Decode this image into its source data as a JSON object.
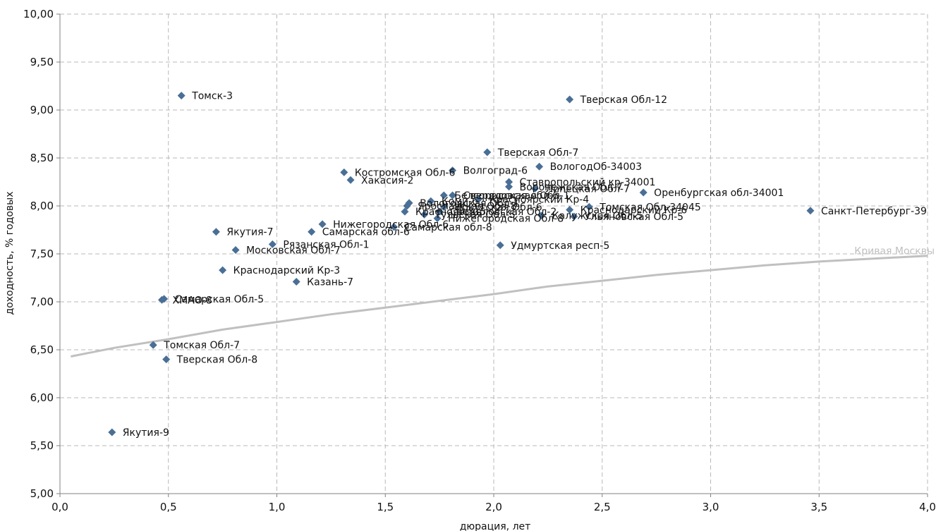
{
  "chart_data": {
    "type": "scatter",
    "xlabel": "дюрация, лет",
    "ylabel": "доходность, % годовых",
    "xlim": [
      0,
      4
    ],
    "ylim": [
      5,
      10
    ],
    "grid": true,
    "x_ticks": [
      "0,0",
      "0,5",
      "1,0",
      "1,5",
      "2,0",
      "2,5",
      "3,0",
      "3,5",
      "4,0"
    ],
    "y_ticks": [
      "5,00",
      "5,50",
      "6,00",
      "6,50",
      "7,00",
      "7,50",
      "8,00",
      "8,50",
      "9,00",
      "9,50",
      "10,00"
    ],
    "marker_color": "#4a6f96",
    "curve_color": "#c0c0c0",
    "points": [
      {
        "label": "Томск-3",
        "x": 0.56,
        "y": 9.15
      },
      {
        "label": "Тверская Обл-12",
        "x": 2.35,
        "y": 9.11
      },
      {
        "label": "Тверская Обл-7",
        "x": 1.97,
        "y": 8.56
      },
      {
        "label": "ВологодОб-34003",
        "x": 2.21,
        "y": 8.41
      },
      {
        "label": "Волгоград-6",
        "x": 1.81,
        "y": 8.37
      },
      {
        "label": "Костромская Обл-6",
        "x": 1.31,
        "y": 8.35
      },
      {
        "label": "Хакасия-2",
        "x": 1.34,
        "y": 8.27
      },
      {
        "label": "Ставропольский кр-34001",
        "x": 2.07,
        "y": 8.25
      },
      {
        "label": "Воронежская Обл-7",
        "x": 2.07,
        "y": 8.2
      },
      {
        "label": "Липецкая Обл-7",
        "x": 2.19,
        "y": 8.18
      },
      {
        "label": "Оренбургская обл-34001",
        "x": 2.69,
        "y": 8.14
      },
      {
        "label": "Белгородская обл-6",
        "x": 1.77,
        "y": 8.11
      },
      {
        "label": "Свердловская Обл-1",
        "x": 1.81,
        "y": 8.11
      },
      {
        "label": "Красноярский Кр-4",
        "x": 1.93,
        "y": 8.07
      },
      {
        "label": "Коми-6",
        "x": 1.71,
        "y": 8.05
      },
      {
        "label": "Вологодская Обл-1",
        "x": 1.61,
        "y": 8.03
      },
      {
        "label": "Ярославская Обл-8",
        "x": 1.6,
        "y": 8.0
      },
      {
        "label": "Иркутская Обл-6",
        "x": 1.77,
        "y": 7.99
      },
      {
        "label": "Томская Обл-34045",
        "x": 2.44,
        "y": 7.99
      },
      {
        "label": "Краснодарский Кр-6",
        "x": 2.35,
        "y": 7.96
      },
      {
        "label": "Санкт-Петербург-39",
        "x": 3.46,
        "y": 7.95
      },
      {
        "label": "Красноярск-5",
        "x": 1.59,
        "y": 7.94
      },
      {
        "label": "Свердловская Обл-2",
        "x": 1.75,
        "y": 7.94
      },
      {
        "label": "Калужская Обл-5",
        "x": 2.22,
        "y": 7.9
      },
      {
        "label": "Ульяновская Обл-5",
        "x": 2.37,
        "y": 7.89
      },
      {
        "label": "Тульская Обл-5",
        "x": 1.68,
        "y": 7.91
      },
      {
        "label": "Нижегородская Обл-8",
        "x": 1.74,
        "y": 7.87
      },
      {
        "label": "Нижегородская Обл-6",
        "x": 1.21,
        "y": 7.81
      },
      {
        "label": "Самарская обл-8",
        "x": 1.54,
        "y": 7.78
      },
      {
        "label": "Самарская обл-6",
        "x": 1.16,
        "y": 7.73
      },
      {
        "label": "Якутия-7",
        "x": 0.72,
        "y": 7.73
      },
      {
        "label": "Рязанская Обл-1",
        "x": 0.98,
        "y": 7.6
      },
      {
        "label": "Удмуртская респ-5",
        "x": 2.03,
        "y": 7.59
      },
      {
        "label": "Московская Обл-7",
        "x": 0.81,
        "y": 7.54
      },
      {
        "label": "Краснодарский Кр-3",
        "x": 0.75,
        "y": 7.33
      },
      {
        "label": "Казань-7",
        "x": 1.09,
        "y": 7.21
      },
      {
        "label": "Самарская Обл-5",
        "x": 0.48,
        "y": 7.03
      },
      {
        "label": "ХМАО-8",
        "x": 0.47,
        "y": 7.02
      },
      {
        "label": "Томская Обл-7",
        "x": 0.43,
        "y": 6.55
      },
      {
        "label": "Тверская Обл-8",
        "x": 0.49,
        "y": 6.4
      },
      {
        "label": "Якутия-9",
        "x": 0.24,
        "y": 5.64
      }
    ],
    "curve": {
      "name": "Кривая Москвы",
      "x": [
        0.05,
        0.25,
        0.5,
        0.75,
        1.0,
        1.25,
        1.5,
        1.75,
        2.0,
        2.25,
        2.5,
        2.75,
        3.0,
        3.25,
        3.5,
        3.75,
        4.0
      ],
      "y": [
        6.43,
        6.52,
        6.61,
        6.71,
        6.79,
        6.87,
        6.94,
        7.01,
        7.08,
        7.16,
        7.22,
        7.28,
        7.33,
        7.38,
        7.42,
        7.45,
        7.48
      ]
    }
  }
}
